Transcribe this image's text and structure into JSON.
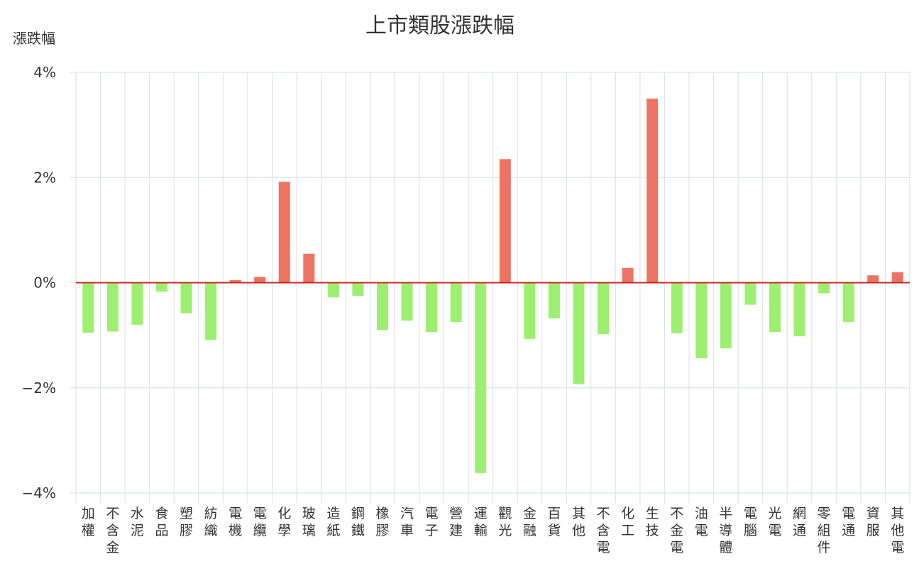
{
  "chart_data": {
    "type": "bar",
    "title": "上市類股漲跌幅",
    "ylabel": "漲跌幅",
    "ylim": [
      -4,
      4
    ],
    "yticks": [
      {
        "value": 4,
        "label": "4%"
      },
      {
        "value": 2,
        "label": "2%"
      },
      {
        "value": 0,
        "label": "0%"
      },
      {
        "value": -2,
        "label": "−2%"
      },
      {
        "value": -4,
        "label": "−4%"
      }
    ],
    "grid": true,
    "colors": {
      "positive": "#ed7464",
      "negative": "#9df06f",
      "zero_line": "#c62828",
      "grid": "#dfe3e8"
    },
    "categories": [
      "加權",
      "不含金",
      "水泥",
      "食品",
      "塑膠",
      "紡織",
      "電機",
      "電纜",
      "化學",
      "玻璃",
      "造紙",
      "鋼鐵",
      "橡膠",
      "汽車",
      "電子",
      "營建",
      "運輸",
      "觀光",
      "金融",
      "百貨",
      "其他",
      "不含電",
      "化工",
      "生技",
      "不金電",
      "油電",
      "半導體",
      "電腦",
      "光電",
      "網通",
      "零組件",
      "電通",
      "資服",
      "其他電"
    ],
    "values": [
      -0.95,
      -0.93,
      -0.8,
      -0.17,
      -0.58,
      -1.09,
      0.05,
      0.11,
      1.92,
      0.55,
      -0.28,
      -0.25,
      -0.9,
      -0.72,
      -0.94,
      -0.75,
      -3.62,
      2.35,
      -1.07,
      -0.68,
      -1.93,
      -0.98,
      0.28,
      3.5,
      -0.96,
      -1.44,
      -1.25,
      -0.42,
      -0.94,
      -1.02,
      -0.2,
      -0.75,
      0.14,
      0.2
    ]
  }
}
